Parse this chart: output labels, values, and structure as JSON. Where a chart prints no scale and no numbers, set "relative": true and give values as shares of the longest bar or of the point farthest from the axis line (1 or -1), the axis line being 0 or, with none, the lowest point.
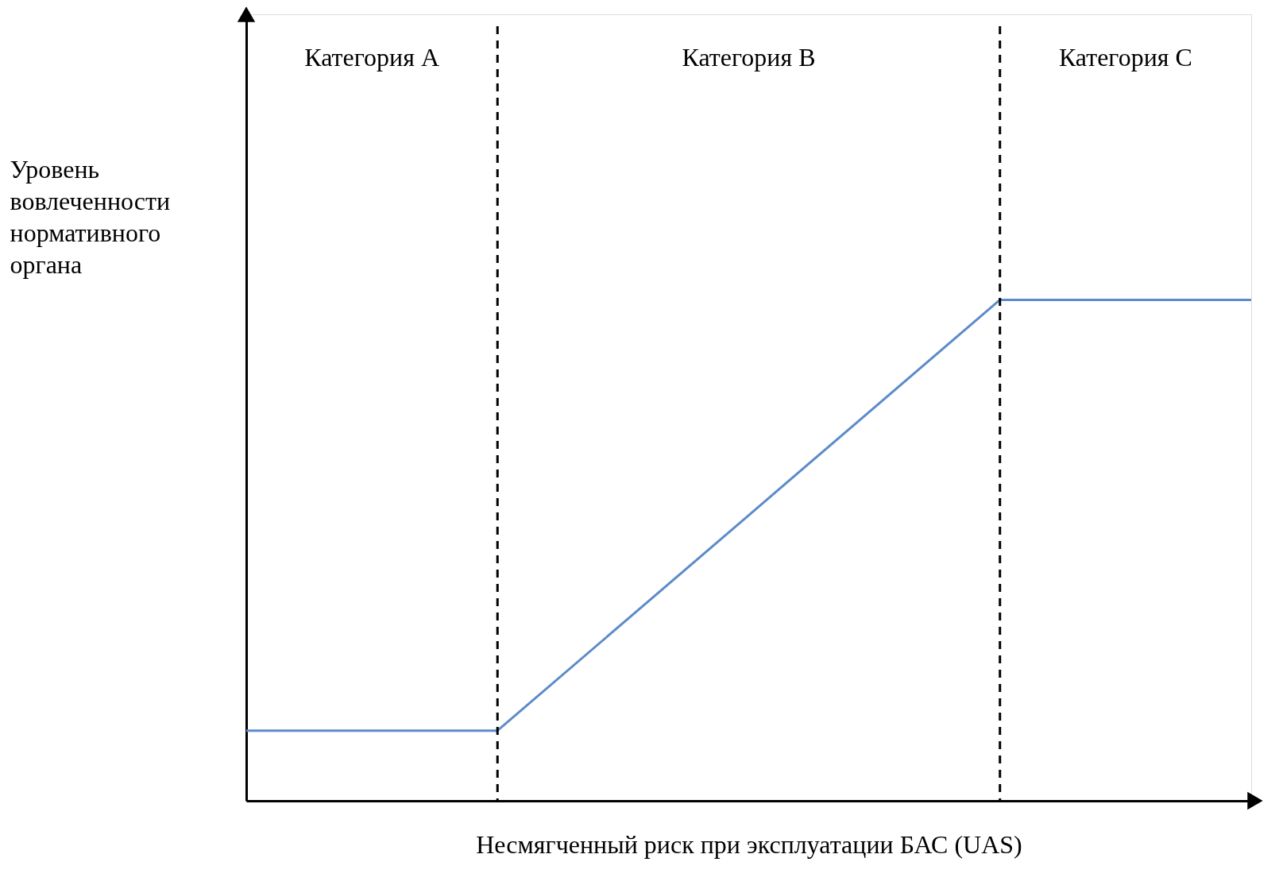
{
  "chart_data": {
    "type": "line",
    "relative": true,
    "xlabel": "Несмягченный риск при эксплуатации БАС (UAS)",
    "ylabel": "Уровень вовлеченности нормативного органа",
    "categories": [
      null,
      null,
      null,
      null,
      null
    ],
    "series": [
      {
        "color": "#5b8bc9",
        "values": [
          0.14,
          0.14,
          0.57,
          1,
          1
        ]
      }
    ],
    "ref_lines": [
      {
        "axis": "x",
        "line_style": "dashed",
        "color": "#000000"
      },
      {
        "axis": "x",
        "line_style": "dashed",
        "color": "#000000"
      }
    ],
    "annotations": [
      "Категория A",
      "Категория B",
      "Категория C"
    ],
    "grid": false,
    "marker": "none",
    "line_style": "solid"
  }
}
